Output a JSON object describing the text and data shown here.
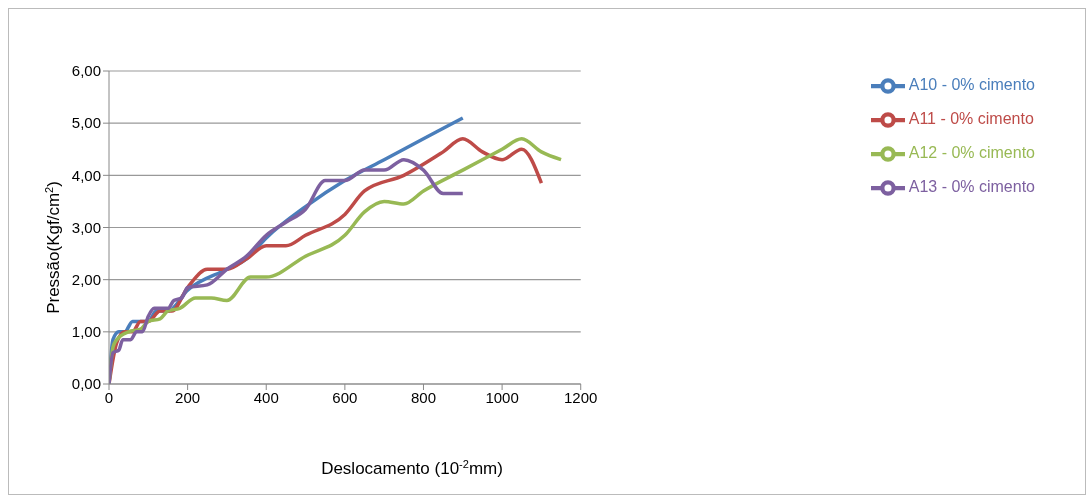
{
  "chart_data": {
    "type": "line",
    "xlabel": "Deslocamento (10$^{-2}$mm)",
    "ylabel": "Pressão(Kgf/cm$^{2}$)",
    "xlim": [
      0,
      1200
    ],
    "xticks": [
      0,
      200,
      400,
      600,
      800,
      1000,
      1200
    ],
    "ylim": [
      0,
      6
    ],
    "yticks": [
      {
        "value": 0,
        "label": "0,00"
      },
      {
        "value": 1,
        "label": "1,00"
      },
      {
        "value": 2,
        "label": "2,00"
      },
      {
        "value": 3,
        "label": "3,00"
      },
      {
        "value": 4,
        "label": "4,00"
      },
      {
        "value": 5,
        "label": "5,00"
      },
      {
        "value": 6,
        "label": "6,00"
      }
    ],
    "grid": "y",
    "legend": "right",
    "marker": "none",
    "line_style": "solid",
    "series": [
      {
        "name": "A10 - 0% cimento",
        "color": "#4a7ebb",
        "x": [
          0,
          10,
          25,
          40,
          60,
          80,
          100,
          120,
          150,
          200,
          300,
          350,
          400,
          500,
          600,
          700,
          800,
          900
        ],
        "values": [
          0,
          0.85,
          1.0,
          1.0,
          1.2,
          1.2,
          1.2,
          1.4,
          1.4,
          1.8,
          2.2,
          2.4,
          2.8,
          3.4,
          3.9,
          4.3,
          4.7,
          5.1
        ]
      },
      {
        "name": "A11 - 0% cimento",
        "color": "#be4b48",
        "x": [
          0,
          20,
          40,
          60,
          80,
          100,
          130,
          160,
          200,
          250,
          300,
          350,
          400,
          450,
          500,
          600,
          650,
          750,
          850,
          900,
          950,
          1000,
          1050,
          1100
        ],
        "values": [
          0,
          0.8,
          1.0,
          1.0,
          1.2,
          1.2,
          1.4,
          1.4,
          1.85,
          2.2,
          2.2,
          2.4,
          2.65,
          2.65,
          2.85,
          3.25,
          3.7,
          4.0,
          4.45,
          4.7,
          4.45,
          4.3,
          4.5,
          3.85
        ]
      },
      {
        "name": "A12 - 0% cimento",
        "color": "#98b954",
        "x": [
          0,
          10,
          20,
          50,
          80,
          100,
          130,
          150,
          180,
          220,
          260,
          300,
          360,
          400,
          500,
          600,
          650,
          700,
          750,
          800,
          900,
          1000,
          1050,
          1100,
          1150
        ],
        "values": [
          0,
          0.7,
          0.85,
          1.0,
          1.05,
          1.2,
          1.25,
          1.4,
          1.45,
          1.65,
          1.65,
          1.6,
          2.05,
          2.05,
          2.45,
          2.85,
          3.3,
          3.5,
          3.45,
          3.7,
          4.1,
          4.5,
          4.7,
          4.45,
          4.3
        ]
      },
      {
        "name": "A13 - 0% cimento",
        "color": "#7d60a0",
        "x": [
          0,
          10,
          25,
          35,
          55,
          70,
          85,
          100,
          115,
          150,
          165,
          185,
          200,
          250,
          300,
          350,
          400,
          450,
          500,
          550,
          600,
          650,
          700,
          750,
          800,
          850,
          900
        ],
        "values": [
          0,
          0.6,
          0.65,
          0.85,
          0.85,
          1.0,
          1.0,
          1.3,
          1.45,
          1.45,
          1.6,
          1.65,
          1.85,
          1.9,
          2.2,
          2.45,
          2.85,
          3.1,
          3.35,
          3.9,
          3.9,
          4.1,
          4.1,
          4.3,
          4.1,
          3.65,
          3.65
        ]
      }
    ]
  }
}
